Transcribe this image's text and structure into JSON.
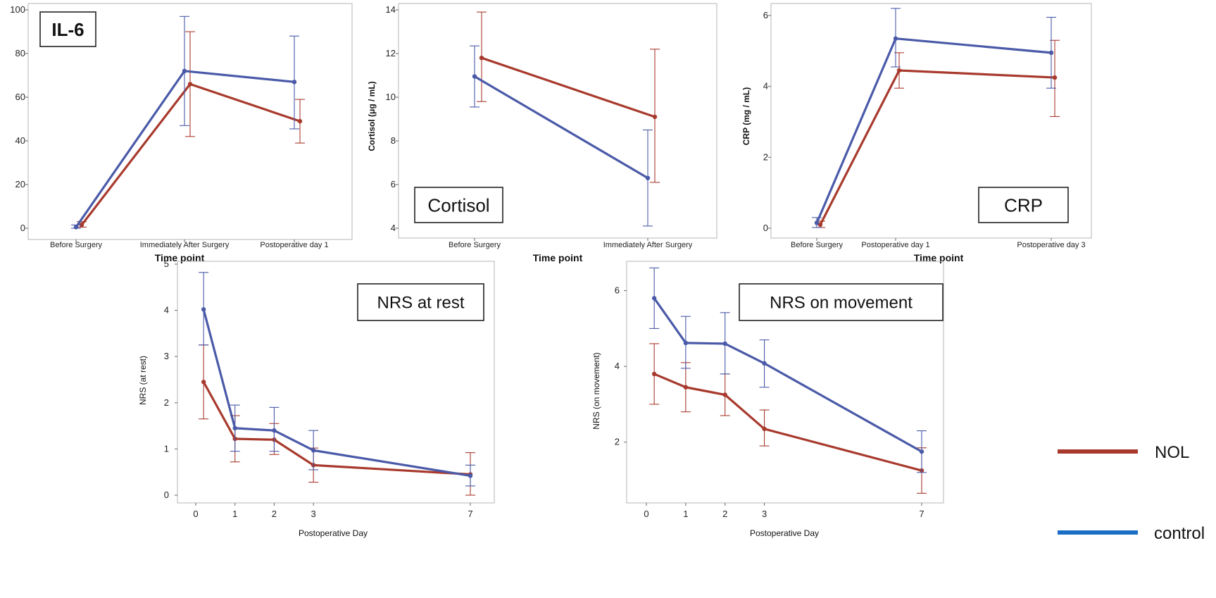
{
  "colors": {
    "nol": "#a83a2d",
    "control": "#4a5aa8",
    "legend_control": "#1a6fc4",
    "axis": "#9a9a9a"
  },
  "legend": {
    "nol_label": "NOL",
    "control_label": "control"
  },
  "chart_data": [
    {
      "id": "il6",
      "type": "line",
      "title": "IL-6",
      "xlabel": "Time point",
      "ylabel": "",
      "categories": [
        "Before Surgery",
        "Immediately After Surgery",
        "Postoperative day 1"
      ],
      "ylim": [
        0,
        100
      ],
      "yticks": [
        0,
        20,
        40,
        60,
        80,
        100
      ],
      "series": [
        {
          "name": "NOL",
          "values": [
            1.5,
            66,
            49
          ],
          "lower": [
            0.5,
            42,
            39
          ],
          "upper": [
            3,
            90,
            59
          ]
        },
        {
          "name": "control",
          "values": [
            0.5,
            72,
            67
          ],
          "lower": [
            0,
            47,
            45.5
          ],
          "upper": [
            1.5,
            97,
            88
          ]
        }
      ]
    },
    {
      "id": "cortisol",
      "type": "line",
      "title": "Cortisol",
      "xlabel": "Time point",
      "ylabel": "Cortisol (μg / mL)",
      "categories": [
        "Before Surgery",
        "Immediately After Surgery"
      ],
      "ylim": [
        4,
        14
      ],
      "yticks": [
        4,
        6,
        8,
        10,
        12,
        14
      ],
      "series": [
        {
          "name": "NOL",
          "values": [
            11.8,
            9.1
          ],
          "lower": [
            9.8,
            6.1
          ],
          "upper": [
            13.9,
            12.2
          ]
        },
        {
          "name": "control",
          "values": [
            10.95,
            6.3
          ],
          "lower": [
            9.55,
            4.1
          ],
          "upper": [
            12.35,
            8.5
          ]
        }
      ]
    },
    {
      "id": "crp",
      "type": "line",
      "title": "CRP",
      "xlabel": "Time point",
      "ylabel": "CRP (mg / mL)",
      "categories": [
        "Before Surgery",
        "Postoperative day 1",
        "Postoperative day 3"
      ],
      "ylim": [
        0,
        6
      ],
      "yticks": [
        0,
        2,
        4,
        6
      ],
      "series": [
        {
          "name": "NOL",
          "values": [
            0.1,
            4.45,
            4.25
          ],
          "lower": [
            0.02,
            3.95,
            3.15
          ],
          "upper": [
            0.2,
            4.95,
            5.3
          ]
        },
        {
          "name": "control",
          "values": [
            0.15,
            5.35,
            4.95
          ],
          "lower": [
            0.02,
            4.55,
            3.95
          ],
          "upper": [
            0.3,
            6.2,
            5.95
          ]
        }
      ]
    },
    {
      "id": "nrs-rest",
      "type": "line",
      "title": "NRS at rest",
      "xlabel": "Postoperative Day",
      "ylabel": "NRS (at rest)",
      "x": [
        0.2,
        1,
        2,
        3,
        7
      ],
      "xticks": [
        0,
        1,
        2,
        3,
        7
      ],
      "ylim": [
        0,
        5
      ],
      "yticks": [
        0,
        1,
        2,
        3,
        4,
        5
      ],
      "series": [
        {
          "name": "NOL",
          "values": [
            2.45,
            1.22,
            1.2,
            0.65,
            0.45
          ],
          "lower": [
            1.65,
            0.72,
            0.88,
            0.28,
            0.0
          ],
          "upper": [
            3.25,
            1.72,
            1.55,
            1.02,
            0.92
          ]
        },
        {
          "name": "control",
          "values": [
            4.02,
            1.45,
            1.4,
            0.97,
            0.42
          ],
          "lower": [
            3.25,
            0.95,
            0.95,
            0.55,
            0.2
          ],
          "upper": [
            4.82,
            1.95,
            1.9,
            1.4,
            0.65
          ]
        }
      ]
    },
    {
      "id": "nrs-move",
      "type": "line",
      "title": "NRS on movement",
      "xlabel": "Postoperative Day",
      "ylabel": "NRS (on movement)",
      "x": [
        0.2,
        1,
        2,
        3,
        7
      ],
      "xticks": [
        0,
        1,
        2,
        3,
        7
      ],
      "ylim": [
        0.6,
        6.7
      ],
      "yticks": [
        2,
        4,
        6
      ],
      "series": [
        {
          "name": "NOL",
          "values": [
            3.8,
            3.45,
            3.25,
            2.35,
            1.25
          ],
          "lower": [
            3.0,
            2.8,
            2.7,
            1.9,
            0.65
          ],
          "upper": [
            4.6,
            4.1,
            3.8,
            2.85,
            1.85
          ]
        },
        {
          "name": "control",
          "values": [
            5.8,
            4.62,
            4.6,
            4.08,
            1.75
          ],
          "lower": [
            5.0,
            3.95,
            3.8,
            3.45,
            1.2
          ],
          "upper": [
            6.6,
            5.32,
            5.42,
            4.7,
            2.3
          ]
        }
      ]
    }
  ]
}
